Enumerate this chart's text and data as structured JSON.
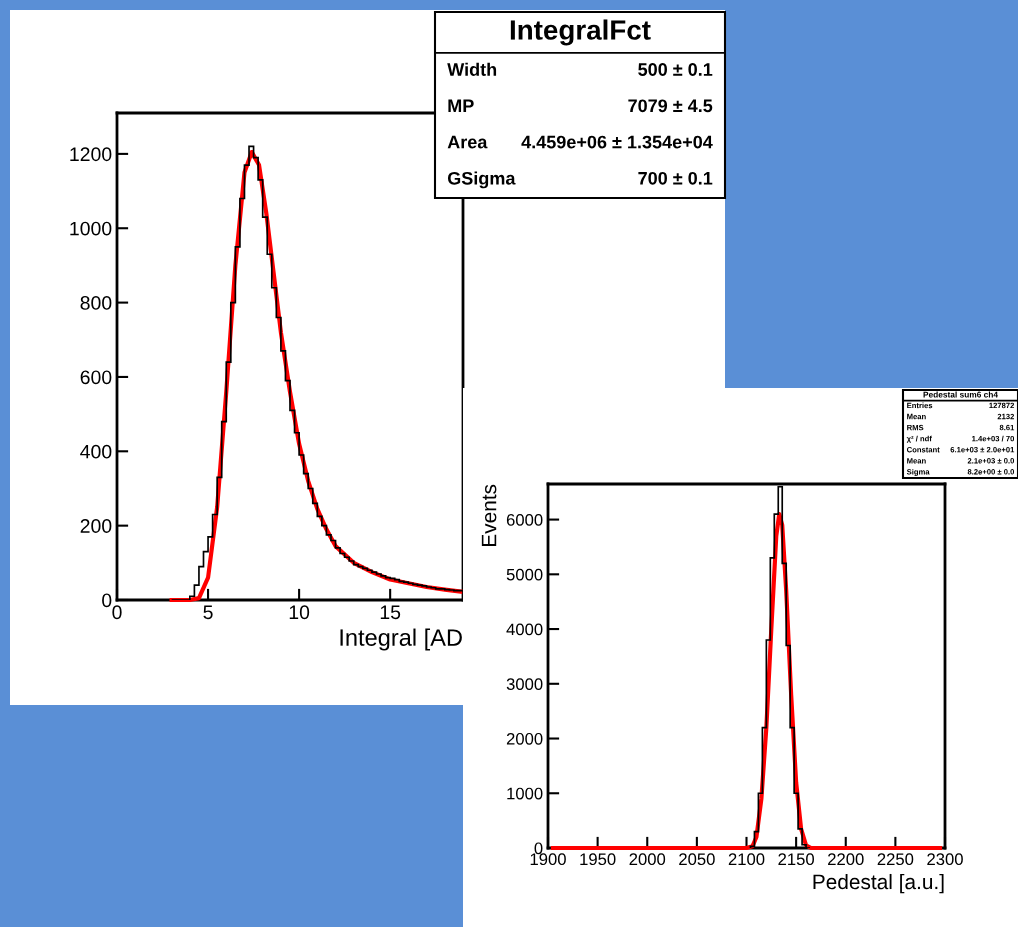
{
  "chart_data": [
    {
      "type": "histogram",
      "xlabel": "Integral [AD",
      "xlim": [
        0,
        19
      ],
      "xticks": [
        0,
        5,
        10,
        15
      ],
      "ylim": [
        0,
        1310
      ],
      "yticks": [
        0,
        200,
        400,
        600,
        800,
        1000,
        1200
      ],
      "color": "#000000",
      "bins": [
        3.0,
        3.25,
        3.5,
        3.75,
        4.0,
        4.25,
        4.5,
        4.75,
        5.0,
        5.25,
        5.5,
        5.75,
        6.0,
        6.25,
        6.5,
        6.75,
        7.0,
        7.25,
        7.5,
        7.75,
        8.0,
        8.25,
        8.5,
        8.75,
        9.0,
        9.25,
        9.5,
        9.75,
        10.0,
        10.25,
        10.5,
        10.75,
        11.0,
        11.25,
        11.5,
        11.75,
        12.0,
        12.25,
        12.5,
        12.75,
        13.0,
        13.25,
        13.5,
        13.75,
        14.0,
        14.25,
        14.5,
        14.75,
        15.0,
        15.25,
        15.5,
        15.75,
        16.0,
        16.25,
        16.5,
        16.75,
        17.0,
        17.25,
        17.5,
        17.75,
        18.0,
        18.25,
        18.5,
        18.75,
        19.0
      ],
      "values": [
        0,
        0,
        0,
        0,
        10,
        40,
        90,
        130,
        170,
        230,
        330,
        480,
        640,
        800,
        950,
        1080,
        1170,
        1220,
        1190,
        1130,
        1030,
        930,
        840,
        760,
        670,
        590,
        510,
        450,
        390,
        340,
        300,
        260,
        225,
        200,
        175,
        160,
        140,
        125,
        115,
        105,
        95,
        90,
        85,
        80,
        75,
        70,
        65,
        60,
        58,
        55,
        50,
        48,
        45,
        42,
        40,
        38,
        35,
        33,
        30,
        30,
        28,
        27,
        25,
        25
      ],
      "series": [
        {
          "type": "line",
          "color": "#ff0000",
          "x": [
            3,
            4,
            4.5,
            5,
            5.5,
            6,
            6.5,
            7,
            7.4,
            7.8,
            8.2,
            8.6,
            9,
            9.5,
            10,
            10.5,
            11,
            11.5,
            12,
            13,
            14,
            15,
            16,
            17,
            18,
            19
          ],
          "values": [
            0,
            0,
            5,
            60,
            250,
            560,
            900,
            1150,
            1205,
            1170,
            1040,
            880,
            720,
            560,
            420,
            320,
            245,
            190,
            145,
            100,
            75,
            55,
            45,
            35,
            28,
            22
          ]
        }
      ],
      "annotations": [
        "IntegralFct",
        "Width",
        "500 ± 0.1",
        "MP",
        "7079 ± 4.5",
        "Area",
        "4.459e+06 ± 1.354e+04",
        "GSigma",
        "700 ± 0.1"
      ]
    },
    {
      "type": "histogram",
      "xlabel": "Pedestal [a.u.]",
      "ylabel": "Events",
      "xlim": [
        1900,
        2300
      ],
      "xticks": [
        1900,
        1950,
        2000,
        2050,
        2100,
        2150,
        2200,
        2250,
        2300
      ],
      "ylim": [
        0,
        6650
      ],
      "yticks": [
        0,
        1000,
        2000,
        3000,
        4000,
        5000,
        6000
      ],
      "color": "#000000",
      "bins": [
        2104,
        2108,
        2112,
        2116,
        2120,
        2124,
        2128,
        2132,
        2136,
        2140,
        2144,
        2148,
        2152,
        2156,
        2160,
        2164
      ],
      "values": [
        30,
        300,
        1000,
        2200,
        3800,
        5300,
        6100,
        6600,
        5200,
        3700,
        2200,
        1000,
        350,
        60,
        0
      ],
      "series": [
        {
          "type": "line",
          "color": "#ff0000",
          "x": [
            1905,
            2100,
            2106,
            2110,
            2115,
            2120,
            2125,
            2130,
            2133,
            2136,
            2140,
            2145,
            2150,
            2155,
            2160,
            2165,
            2295
          ],
          "values": [
            0,
            0,
            30,
            200,
            900,
            2200,
            4000,
            5700,
            6100,
            5900,
            4700,
            2800,
            1200,
            350,
            50,
            0,
            0
          ]
        }
      ],
      "annotations": [
        "Pedestal sum6 ch4",
        "Entries",
        "127872",
        "Mean",
        "2132",
        "RMS",
        "8.61",
        "χ² / ndf",
        "1.4e+03 / 70",
        "Constant",
        "6.1e+03 ± 2.0e+01",
        "Mean",
        "2.1e+03 ± 0.0",
        "Sigma",
        "8.2e+00 ± 0.0"
      ]
    }
  ]
}
